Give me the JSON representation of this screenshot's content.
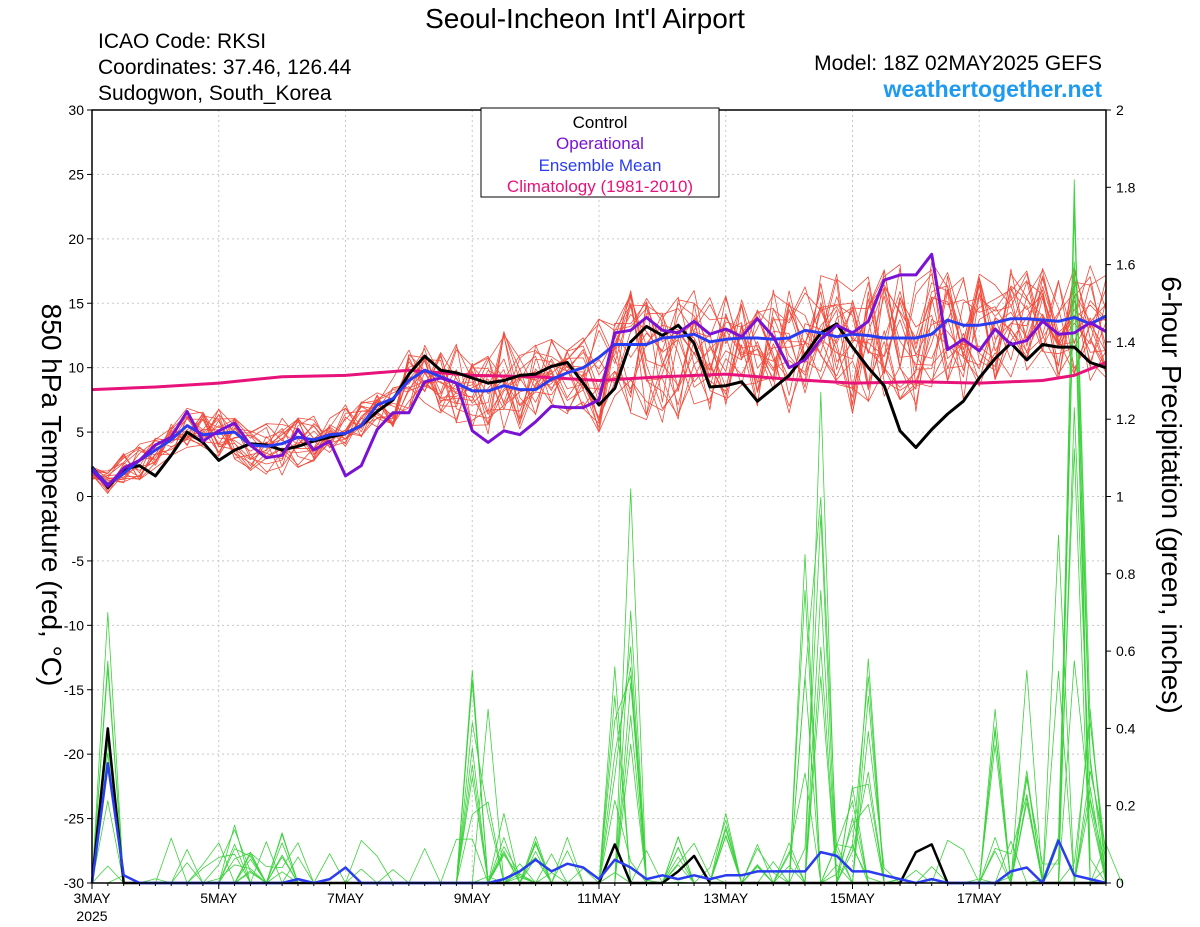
{
  "header": {
    "title": "Seoul-Incheon Int'l Airport",
    "icao": "ICAO Code: RKSI",
    "coordinates": "Coordinates: 37.46, 126.44",
    "location": "Sudogwon, South_Korea",
    "model": "Model: 18Z 02MAY2025 GEFS",
    "site": "weathertogether.net"
  },
  "legend": {
    "items": [
      "Control",
      "Operational",
      "Ensemble Mean",
      "Climatology (1981-2010)"
    ]
  },
  "colors": {
    "control": "#000000",
    "operational": "#7a12d4",
    "ensemble_mean": "#2a3cf0",
    "climatology": "#e8137a",
    "members": "#f04c3c",
    "precip": "#3cd23c",
    "site": "#1e9bf0"
  },
  "chart_data": {
    "type": "line",
    "xlabel": "",
    "ylabel": "850 hPa Temperature (red, °C)",
    "y2label": "6-hour Precipitation (green, inches)",
    "xlim": [
      3.0,
      19.0
    ],
    "ylim": [
      -30,
      30
    ],
    "y2lim": [
      0,
      2
    ],
    "grid": true,
    "x_tick_labels": [
      "3MAY",
      "5MAY",
      "7MAY",
      "9MAY",
      "11MAY",
      "13MAY",
      "15MAY",
      "17MAY"
    ],
    "x_tick_year": "2025",
    "y_tick_labels": [
      "30",
      "25",
      "20",
      "15",
      "10",
      "5",
      "0",
      "-5",
      "-10",
      "-15",
      "-20",
      "-25",
      "-30"
    ],
    "y2_tick_labels": [
      "2",
      "1.8",
      "1.6",
      "1.4",
      "1.2",
      "1",
      "0.8",
      "0.6",
      "0.4",
      "0.2",
      "0"
    ],
    "legend_position": "top-center",
    "series": [
      {
        "name": "Control",
        "x": [
          3.0,
          3.25,
          3.5,
          3.75,
          4.0,
          4.25,
          4.5,
          4.75,
          5.0,
          5.25,
          5.5,
          5.75,
          6.0,
          6.25,
          6.5,
          6.75,
          7.0,
          7.25,
          7.5,
          7.75,
          8.0,
          8.25,
          8.5,
          8.75,
          9.0,
          9.25,
          9.5,
          9.75,
          10.0,
          10.25,
          10.5,
          10.75,
          11.0,
          11.25,
          11.5,
          11.75,
          12.0,
          12.25,
          12.5,
          12.75,
          13.0,
          13.25,
          13.5,
          13.75,
          14.0,
          14.25,
          14.5,
          14.75,
          15.0,
          15.25,
          15.5,
          15.75,
          16.0,
          16.25,
          16.5,
          16.75,
          17.0,
          17.25,
          17.5,
          17.75,
          18.0,
          18.25,
          18.5,
          18.75,
          19.0
        ],
        "values": [
          2.3,
          0.7,
          2.1,
          2.4,
          1.6,
          3.2,
          5.0,
          4.2,
          2.8,
          3.6,
          4.1,
          4.0,
          3.6,
          3.9,
          4.3,
          4.6,
          4.9,
          5.5,
          6.6,
          7.5,
          9.5,
          10.9,
          9.8,
          9.6,
          9.2,
          8.8,
          9.0,
          9.4,
          9.5,
          10.1,
          10.4,
          8.8,
          7.1,
          8.4,
          12.0,
          13.2,
          12.5,
          13.3,
          11.9,
          8.5,
          8.6,
          8.9,
          7.4,
          8.4,
          9.4,
          11.0,
          12.7,
          13.4,
          11.6,
          10.0,
          8.6,
          5.1,
          3.8,
          5.2,
          6.4,
          7.4,
          9.2,
          10.7,
          11.9,
          10.6,
          11.8,
          11.6,
          11.6,
          10.4,
          10.0
        ]
      },
      {
        "name": "Operational",
        "x": [
          3.0,
          3.25,
          3.5,
          3.75,
          4.0,
          4.25,
          4.5,
          4.75,
          5.0,
          5.25,
          5.5,
          5.75,
          6.0,
          6.25,
          6.5,
          6.75,
          7.0,
          7.25,
          7.5,
          7.75,
          8.0,
          8.25,
          8.5,
          8.75,
          9.0,
          9.25,
          9.5,
          9.75,
          10.0,
          10.25,
          10.5,
          10.75,
          11.0,
          11.25,
          11.5,
          11.75,
          12.0,
          12.25,
          12.5,
          12.75,
          13.0,
          13.25,
          13.5,
          13.75,
          14.0,
          14.25,
          14.5,
          14.75,
          15.0,
          15.25,
          15.5,
          15.75,
          16.0,
          16.25,
          16.5,
          16.75,
          17.0,
          17.25,
          17.5,
          17.75,
          18.0,
          18.25,
          18.5,
          18.75,
          19.0
        ],
        "values": [
          2.0,
          0.8,
          2.2,
          2.8,
          4.0,
          4.6,
          6.6,
          4.3,
          5.1,
          5.7,
          4.0,
          3.0,
          3.2,
          5.2,
          3.6,
          4.3,
          1.6,
          2.4,
          5.2,
          6.5,
          6.5,
          8.9,
          9.2,
          8.8,
          5.1,
          4.2,
          5.1,
          4.8,
          5.8,
          7.0,
          6.9,
          6.9,
          7.5,
          12.7,
          12.9,
          13.9,
          12.9,
          12.7,
          13.6,
          12.6,
          13.0,
          12.4,
          13.8,
          12.4,
          10.0,
          10.6,
          12.2,
          13.3,
          12.7,
          13.6,
          16.8,
          17.2,
          17.2,
          18.8,
          11.4,
          12.2,
          11.3,
          13.0,
          11.8,
          12.1,
          13.6,
          12.6,
          12.7,
          13.5,
          12.8
        ]
      },
      {
        "name": "Ensemble Mean",
        "x": [
          3.0,
          3.25,
          3.5,
          3.75,
          4.0,
          4.25,
          4.5,
          4.75,
          5.0,
          5.25,
          5.5,
          5.75,
          6.0,
          6.25,
          6.5,
          6.75,
          7.0,
          7.25,
          7.5,
          7.75,
          8.0,
          8.25,
          8.5,
          8.75,
          9.0,
          9.25,
          9.5,
          9.75,
          10.0,
          10.25,
          10.5,
          10.75,
          11.0,
          11.25,
          11.5,
          11.75,
          12.0,
          12.25,
          12.5,
          12.75,
          13.0,
          13.25,
          13.5,
          13.75,
          14.0,
          14.25,
          14.5,
          14.75,
          15.0,
          15.25,
          15.5,
          15.75,
          16.0,
          16.25,
          16.5,
          16.75,
          17.0,
          17.25,
          17.5,
          17.75,
          18.0,
          18.25,
          18.5,
          18.75,
          19.0
        ],
        "values": [
          2.2,
          0.9,
          1.8,
          2.8,
          3.6,
          4.4,
          5.5,
          4.8,
          4.9,
          5.0,
          4.0,
          3.9,
          4.1,
          4.6,
          4.4,
          4.8,
          4.9,
          5.5,
          7.1,
          7.6,
          9.0,
          9.8,
          9.3,
          8.8,
          8.2,
          8.2,
          8.6,
          8.3,
          8.3,
          9.1,
          9.6,
          10.0,
          10.8,
          11.8,
          11.8,
          11.8,
          12.3,
          12.4,
          12.6,
          12.0,
          12.2,
          12.3,
          12.3,
          12.2,
          12.3,
          12.9,
          12.7,
          12.4,
          12.6,
          12.5,
          12.3,
          12.3,
          12.3,
          12.6,
          13.7,
          13.3,
          13.3,
          13.5,
          13.8,
          13.8,
          13.7,
          13.6,
          13.9,
          13.4,
          14.0
        ]
      },
      {
        "name": "Climatology (1981-2010)",
        "x": [
          3.0,
          4.0,
          5.0,
          6.0,
          7.0,
          7.5,
          8.0,
          9.0,
          10.0,
          11.0,
          12.0,
          13.0,
          14.0,
          15.0,
          16.0,
          17.0,
          18.0,
          18.5,
          19.0
        ],
        "values": [
          8.3,
          8.5,
          8.8,
          9.3,
          9.4,
          9.6,
          9.8,
          9.4,
          9.3,
          9.0,
          9.3,
          9.5,
          9.1,
          8.8,
          8.9,
          8.8,
          9.0,
          9.4,
          10.4
        ]
      }
    ],
    "member_envelope": {
      "x": [
        3.0,
        3.25,
        3.5,
        3.75,
        4.0,
        4.25,
        4.5,
        4.75,
        5.0,
        5.25,
        5.5,
        5.75,
        6.0,
        6.25,
        6.5,
        6.75,
        7.0,
        7.25,
        7.5,
        7.75,
        8.0,
        8.25,
        8.5,
        8.75,
        9.0,
        9.25,
        9.5,
        9.75,
        10.0,
        10.25,
        10.5,
        10.75,
        11.0,
        11.25,
        11.5,
        11.75,
        12.0,
        12.25,
        12.5,
        12.75,
        13.0,
        13.25,
        13.5,
        13.75,
        14.0,
        14.25,
        14.5,
        14.75,
        15.0,
        15.25,
        15.5,
        15.75,
        16.0,
        16.25,
        16.5,
        16.75,
        17.0,
        17.25,
        17.5,
        17.75,
        18.0,
        18.25,
        18.5,
        18.75,
        19.0
      ],
      "low": [
        1.3,
        0.2,
        0.9,
        1.2,
        2.2,
        3.0,
        3.8,
        3.2,
        3.1,
        2.9,
        1.8,
        1.7,
        1.6,
        2.0,
        2.6,
        3.3,
        3.7,
        4.6,
        5.4,
        5.3,
        6.4,
        7.1,
        6.4,
        5.7,
        5.2,
        4.5,
        4.6,
        5.2,
        5.9,
        5.9,
        6.4,
        6.1,
        4.2,
        7.0,
        6.0,
        5.8,
        5.7,
        5.8,
        7.0,
        6.2,
        6.4,
        8.3,
        6.8,
        7.7,
        6.4,
        8.0,
        8.8,
        8.3,
        6.2,
        6.7,
        6.7,
        7.2,
        6.2,
        8.0,
        8.9,
        7.4,
        8.4,
        8.8,
        9.0,
        9.4,
        9.6,
        8.9,
        8.9,
        9.0,
        9.0
      ],
      "high": [
        2.3,
        2.1,
        3.4,
        4.1,
        4.8,
        5.8,
        6.9,
        6.6,
        7.1,
        6.2,
        5.3,
        5.9,
        6.2,
        6.4,
        6.3,
        6.4,
        7.3,
        7.6,
        8.1,
        9.7,
        11.5,
        12.0,
        11.3,
        12.0,
        10.5,
        11.2,
        12.9,
        11.7,
        12.0,
        12.6,
        11.7,
        12.6,
        13.9,
        13.6,
        16.4,
        15.6,
        14.5,
        16.7,
        16.0,
        15.8,
        15.8,
        15.3,
        15.5,
        16.4,
        16.0,
        16.4,
        17.2,
        17.4,
        16.0,
        17.2,
        17.8,
        18.1,
        17.6,
        18.3,
        17.4,
        17.3,
        17.8,
        17.7,
        18.1,
        18.6,
        18.0,
        17.8,
        17.9,
        18.3,
        18.2
      ]
    },
    "precip_ensemble_mean": {
      "x": [
        3.0,
        3.25,
        3.5,
        3.75,
        4.0,
        4.25,
        4.5,
        4.75,
        5.0,
        5.25,
        5.5,
        5.75,
        6.0,
        6.25,
        6.5,
        6.75,
        7.0,
        7.25,
        7.5,
        7.75,
        8.0,
        8.25,
        8.5,
        8.75,
        9.0,
        9.25,
        9.5,
        9.75,
        10.0,
        10.25,
        10.5,
        10.75,
        11.0,
        11.25,
        11.5,
        11.75,
        12.0,
        12.25,
        12.5,
        12.75,
        13.0,
        13.25,
        13.5,
        13.75,
        14.0,
        14.25,
        14.5,
        14.75,
        15.0,
        15.25,
        15.5,
        15.75,
        16.0,
        16.25,
        16.5,
        16.75,
        17.0,
        17.25,
        17.5,
        17.75,
        18.0,
        18.25,
        18.5,
        18.75,
        19.0
      ],
      "values": [
        0.0,
        0.31,
        0.02,
        0.0,
        0.0,
        0.0,
        0.0,
        0.0,
        0.0,
        0.0,
        0.0,
        0.0,
        0.0,
        0.01,
        0.0,
        0.01,
        0.04,
        0.0,
        0.0,
        0.0,
        0.0,
        0.0,
        0.0,
        0.0,
        0.0,
        0.0,
        0.01,
        0.03,
        0.06,
        0.03,
        0.05,
        0.04,
        0.01,
        0.06,
        0.04,
        0.01,
        0.02,
        0.01,
        0.02,
        0.01,
        0.02,
        0.02,
        0.03,
        0.03,
        0.03,
        0.03,
        0.08,
        0.07,
        0.03,
        0.03,
        0.02,
        0.01,
        0.0,
        0.01,
        0.0,
        0.0,
        0.0,
        0.0,
        0.03,
        0.04,
        0.0,
        0.11,
        0.02,
        0.01,
        0.0
      ]
    },
    "precip_control": {
      "x": [
        3.0,
        3.25,
        3.5,
        3.75,
        4.0,
        4.25,
        4.5,
        4.75,
        5.0,
        5.25,
        5.5,
        5.75,
        6.0,
        6.25,
        6.5,
        6.75,
        7.0,
        7.25,
        7.5,
        7.75,
        8.0,
        8.25,
        8.5,
        8.75,
        9.0,
        9.25,
        9.5,
        9.75,
        10.0,
        10.25,
        10.5,
        10.75,
        11.0,
        11.25,
        11.5,
        11.75,
        12.0,
        12.25,
        12.5,
        12.75,
        13.0,
        13.25,
        13.5,
        13.75,
        14.0,
        14.25,
        14.5,
        14.75,
        15.0,
        15.25,
        15.5,
        15.75,
        16.0,
        16.25,
        16.5,
        16.75,
        17.0,
        17.25,
        17.5,
        17.75,
        18.0,
        18.25,
        18.5,
        18.75,
        19.0
      ],
      "values": [
        0.0,
        0.4,
        0.0,
        0.0,
        0.0,
        0.0,
        0.0,
        0.0,
        0.0,
        0.0,
        0.0,
        0.0,
        0.0,
        0.0,
        0.0,
        0.0,
        0.0,
        0.0,
        0.0,
        0.0,
        0.0,
        0.0,
        0.0,
        0.0,
        0.0,
        0.0,
        0.0,
        0.0,
        0.0,
        0.0,
        0.0,
        0.0,
        0.0,
        0.1,
        0.0,
        0.0,
        0.0,
        0.03,
        0.07,
        0.0,
        0.0,
        0.0,
        0.0,
        0.0,
        0.0,
        0.0,
        0.0,
        0.0,
        0.0,
        0.0,
        0.0,
        0.0,
        0.08,
        0.1,
        0.0,
        0.0,
        0.0,
        0.0,
        0.0,
        0.0,
        0.0,
        0.0,
        0.0,
        0.0,
        0.0
      ]
    },
    "precip_member_peaks": {
      "x": [
        3.0,
        3.25,
        4.0,
        5.0,
        5.0,
        5.25,
        5.5,
        6.0,
        7.0,
        8.0,
        9.0,
        9.0,
        9.25,
        9.5,
        9.75,
        10.0,
        11.0,
        11.25,
        11.5,
        12.0,
        12.25,
        13.0,
        13.5,
        14.0,
        14.25,
        14.5,
        14.75,
        15.0,
        15.25,
        16.0,
        17.0,
        17.25,
        17.75,
        18.25,
        18.5,
        18.75,
        19.0
      ],
      "values": [
        0.0,
        0.7,
        0.0,
        0.0,
        0.0,
        0.15,
        0.08,
        0.13,
        0.0,
        0.0,
        0.55,
        0.35,
        0.45,
        0.18,
        0.05,
        0.12,
        0.0,
        0.56,
        1.02,
        0.0,
        0.12,
        0.18,
        0.1,
        0.08,
        0.85,
        1.27,
        0.1,
        0.25,
        0.58,
        0.0,
        0.0,
        0.45,
        0.55,
        0.9,
        1.82,
        0.45,
        0.1
      ]
    }
  }
}
